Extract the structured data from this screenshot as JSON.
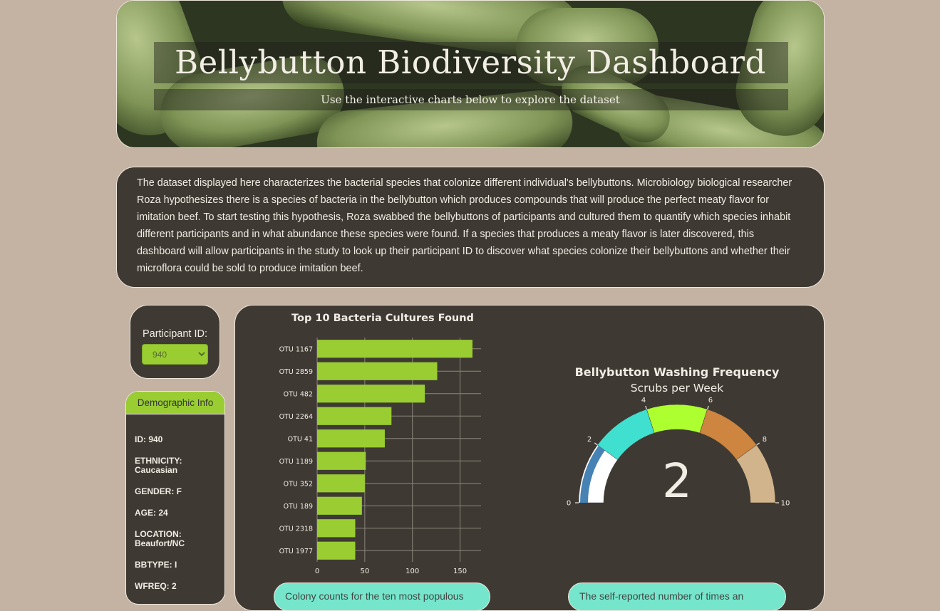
{
  "header": {
    "title": "Bellybutton Biodiversity Dashboard",
    "subtitle": "Use the interactive charts below to explore the dataset"
  },
  "description": "The dataset displayed here characterizes the bacterial species that colonize different individual's bellybuttons. Microbiology biological researcher Roza hypothesizes there is a species of bacteria in the bellybutton which produces compounds that will produce the perfect meaty flavor for imitation beef. To start testing this hypothesis, Roza swabbed the bellybuttons of participants and cultured them to quantify which species inhabit different participants and in what abundance these species were found. If a species that produces a meaty flavor is later discovered, this dashboard will allow participants in the study to look up their participant ID to discover what species colonize their bellybuttons and whether their microflora could be sold to produce imitation beef.",
  "participant": {
    "label": "Participant ID:",
    "selected": "940"
  },
  "demographics": {
    "header": "Demographic Info",
    "lines": [
      "ID: 940",
      "ETHNICITY: Caucasian",
      "GENDER: F",
      "AGE: 24",
      "LOCATION: Beaufort/NC",
      "BBTYPE: I",
      "WFREQ: 2"
    ]
  },
  "notes": {
    "bar": "Colony counts for the ten most populous",
    "gauge": "The self-reported number of times an"
  },
  "colors": {
    "bar": "#9acd32",
    "panel": "#3e3a33",
    "page": "#c4b3a2",
    "note": "#75e6cc"
  },
  "chart_data": [
    {
      "type": "bar",
      "orientation": "horizontal",
      "title": "Top 10 Bacteria Cultures Found",
      "categories": [
        "OTU 1167",
        "OTU 2859",
        "OTU 482",
        "OTU 2264",
        "OTU 41",
        "OTU 1189",
        "OTU 352",
        "OTU 189",
        "OTU 2318",
        "OTU 1977"
      ],
      "values": [
        163,
        126,
        113,
        78,
        71,
        51,
        50,
        47,
        40,
        40
      ],
      "xticks": [
        0,
        50,
        100,
        150
      ],
      "xlim": [
        0,
        172
      ],
      "grid": true,
      "color": "#9acd32"
    },
    {
      "type": "gauge",
      "title": "Bellybutton Washing Frequency",
      "subtitle": "Scrubs per Week",
      "value": 2,
      "range": [
        0,
        10
      ],
      "ticks": [
        0,
        2,
        4,
        6,
        8,
        10
      ],
      "steps": [
        {
          "range": [
            0,
            2
          ],
          "color": "#ffffff"
        },
        {
          "range": [
            2,
            4
          ],
          "color": "#40e0d0"
        },
        {
          "range": [
            4,
            6
          ],
          "color": "#adff2f"
        },
        {
          "range": [
            6,
            8
          ],
          "color": "#cd853f"
        },
        {
          "range": [
            8,
            10
          ],
          "color": "#d2b48c"
        }
      ],
      "bar_color": "#4682b4"
    }
  ]
}
